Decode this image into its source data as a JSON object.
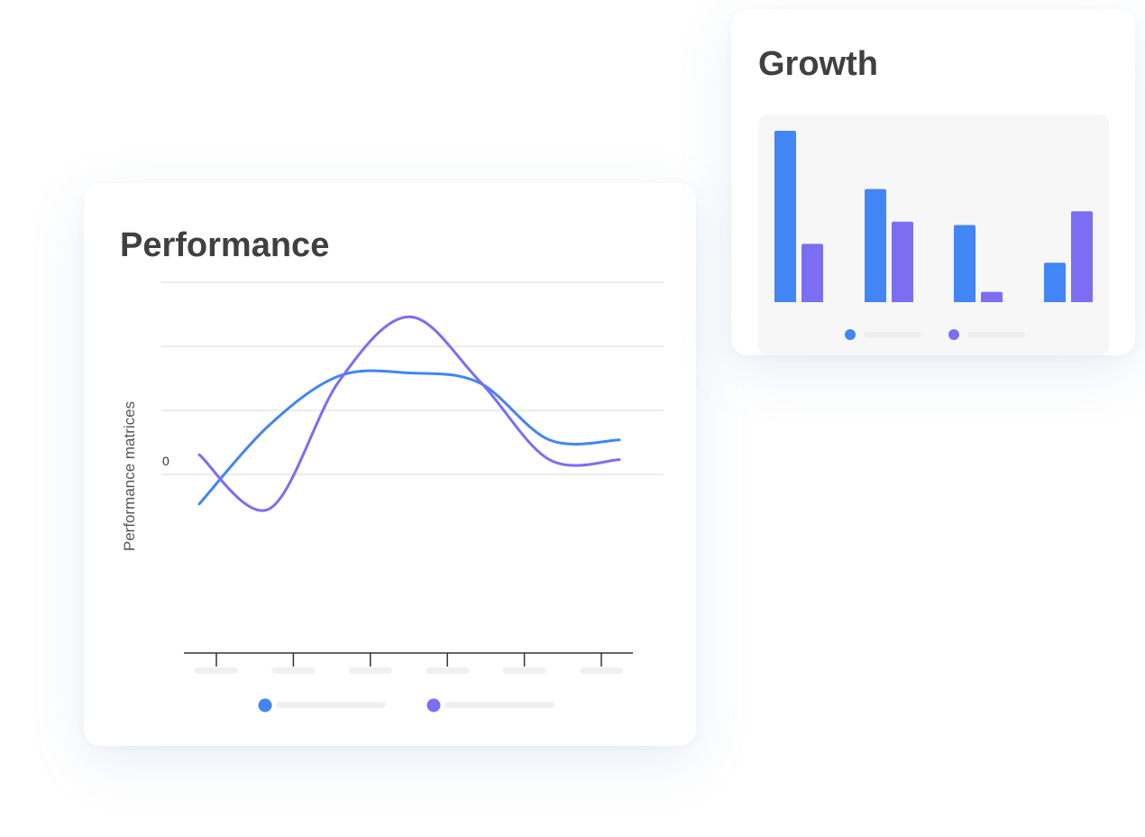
{
  "performance": {
    "title": "Performance",
    "chart_data": {
      "type": "line",
      "title": "Performance",
      "ylabel": "Performance matrices",
      "xlabel": "",
      "y_tick_labels": [
        "0"
      ],
      "x": [
        0,
        1,
        2,
        3,
        4,
        5,
        6
      ],
      "series": [
        {
          "color": "#4285f4",
          "values": [
            -0.95,
            -0.15,
            0.35,
            0.38,
            0.28,
            -0.3,
            -0.3
          ]
        },
        {
          "color": "#7b6ef2",
          "values": [
            -0.45,
            -1.0,
            0.3,
            0.95,
            0.3,
            -0.5,
            -0.5
          ]
        }
      ],
      "ylim": [
        -1.3,
        1.3
      ],
      "grid": true,
      "legend_position": "bottom-center"
    }
  },
  "growth": {
    "title": "Growth",
    "chart_data": {
      "type": "bar",
      "title": "Growth",
      "categories": [
        "",
        "",
        "",
        ""
      ],
      "series": [
        {
          "color": "#4285f4",
          "values": [
            100,
            66,
            45,
            23
          ]
        },
        {
          "color": "#7b6ef2",
          "values": [
            34,
            47,
            6,
            53
          ]
        }
      ],
      "ylim": [
        0,
        100
      ],
      "grid": false,
      "legend_position": "bottom-center"
    }
  }
}
